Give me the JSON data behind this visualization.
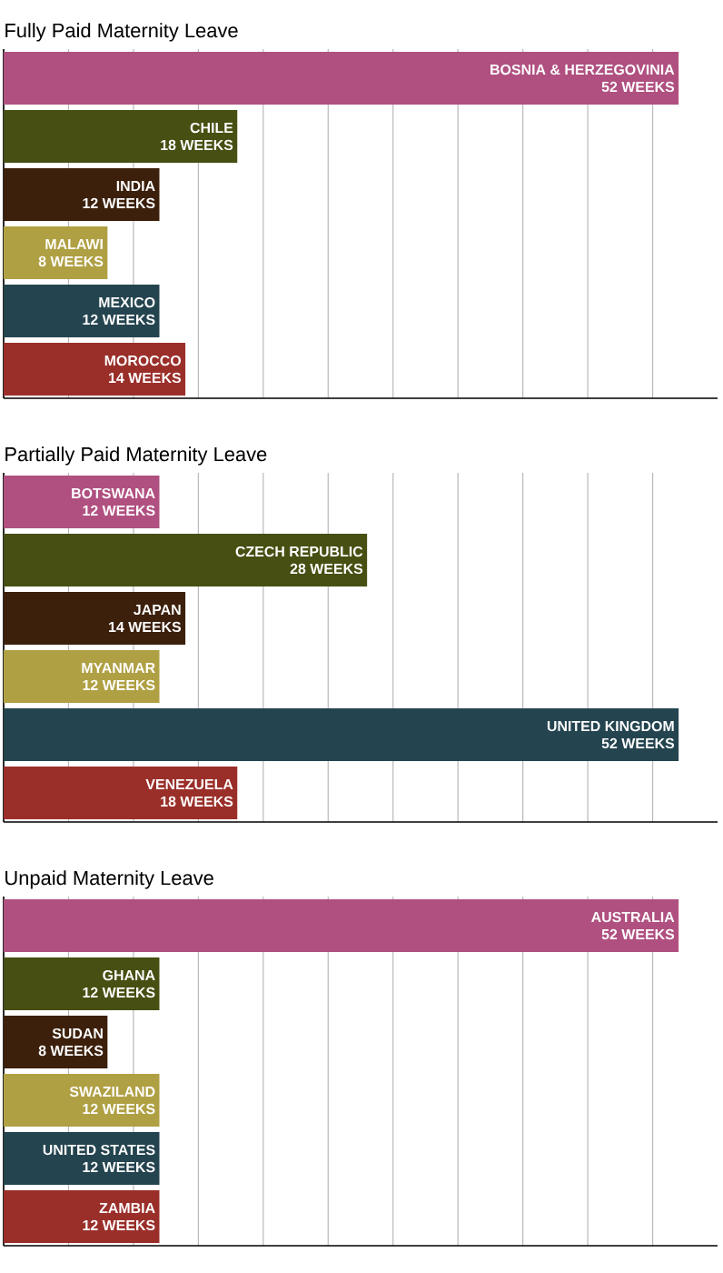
{
  "chart_data": [
    {
      "type": "bar",
      "orientation": "horizontal",
      "title": "Fully Paid Maternity Leave",
      "categories": [
        "BOSNIA & HERZEGOVINIA",
        "CHILE",
        "INDIA",
        "MALAWI",
        "MEXICO",
        "MOROCCO"
      ],
      "values": [
        52,
        18,
        12,
        8,
        12,
        14
      ],
      "value_labels": [
        "52 WEEKS",
        "18 WEEKS",
        "12 WEEKS",
        "8 WEEKS",
        "12 WEEKS",
        "14 WEEKS"
      ],
      "colors": [
        "#b05080",
        "#474f12",
        "#3c200c",
        "#b0a044",
        "#24444f",
        "#9a2f2a"
      ],
      "xlim": [
        0,
        55
      ],
      "xticks": [
        {
          "value": 0,
          "label": null
        },
        {
          "value": 5,
          "label": null
        },
        {
          "value": 10,
          "label": null
        },
        {
          "value": 15,
          "label": null
        },
        {
          "value": 20,
          "label": null
        },
        {
          "value": 25,
          "label": null
        },
        {
          "value": 30,
          "label": null
        },
        {
          "value": 35,
          "label": null
        },
        {
          "value": 40,
          "label": null
        },
        {
          "value": 45,
          "label": null
        },
        {
          "value": 50,
          "label": null
        }
      ],
      "grid": "x"
    },
    {
      "type": "bar",
      "orientation": "horizontal",
      "title": "Partially Paid Maternity Leave",
      "categories": [
        "BOTSWANA",
        "CZECH REPUBLIC",
        "JAPAN",
        "MYANMAR",
        "UNITED KINGDOM",
        "VENEZUELA"
      ],
      "values": [
        12,
        28,
        14,
        12,
        52,
        18
      ],
      "value_labels": [
        "12 WEEKS",
        "28 WEEKS",
        "14 WEEKS",
        "12 WEEKS",
        "52 WEEKS",
        "18 WEEKS"
      ],
      "colors": [
        "#b05080",
        "#474f12",
        "#3c200c",
        "#b0a044",
        "#24444f",
        "#9a2f2a"
      ],
      "xlim": [
        0,
        55
      ],
      "xticks": [
        {
          "value": 0,
          "label": null
        },
        {
          "value": 5,
          "label": null
        },
        {
          "value": 10,
          "label": null
        },
        {
          "value": 15,
          "label": null
        },
        {
          "value": 20,
          "label": null
        },
        {
          "value": 25,
          "label": null
        },
        {
          "value": 30,
          "label": null
        },
        {
          "value": 35,
          "label": null
        },
        {
          "value": 40,
          "label": null
        },
        {
          "value": 45,
          "label": null
        },
        {
          "value": 50,
          "label": null
        }
      ],
      "grid": "x"
    },
    {
      "type": "bar",
      "orientation": "horizontal",
      "title": "Unpaid Maternity Leave",
      "categories": [
        "AUSTRALIA",
        "GHANA",
        "SUDAN",
        "SWAZILAND",
        "UNITED STATES",
        "ZAMBIA"
      ],
      "values": [
        52,
        12,
        8,
        12,
        12,
        12
      ],
      "value_labels": [
        "52 WEEKS",
        "12 WEEKS",
        "8 WEEKS",
        "12 WEEKS",
        "12 WEEKS",
        "12 WEEKS"
      ],
      "colors": [
        "#b05080",
        "#474f12",
        "#3c200c",
        "#b0a044",
        "#24444f",
        "#9a2f2a"
      ],
      "xlim": [
        0,
        55
      ],
      "xticks": [
        {
          "value": 0,
          "label": null
        },
        {
          "value": 5,
          "label": null
        },
        {
          "value": 10,
          "label": null
        },
        {
          "value": 15,
          "label": null
        },
        {
          "value": 20,
          "label": null
        },
        {
          "value": 25,
          "label": null
        },
        {
          "value": 30,
          "label": null
        },
        {
          "value": 35,
          "label": null
        },
        {
          "value": 40,
          "label": null
        },
        {
          "value": 45,
          "label": null
        },
        {
          "value": 50,
          "label": null
        }
      ],
      "grid": "x"
    }
  ]
}
